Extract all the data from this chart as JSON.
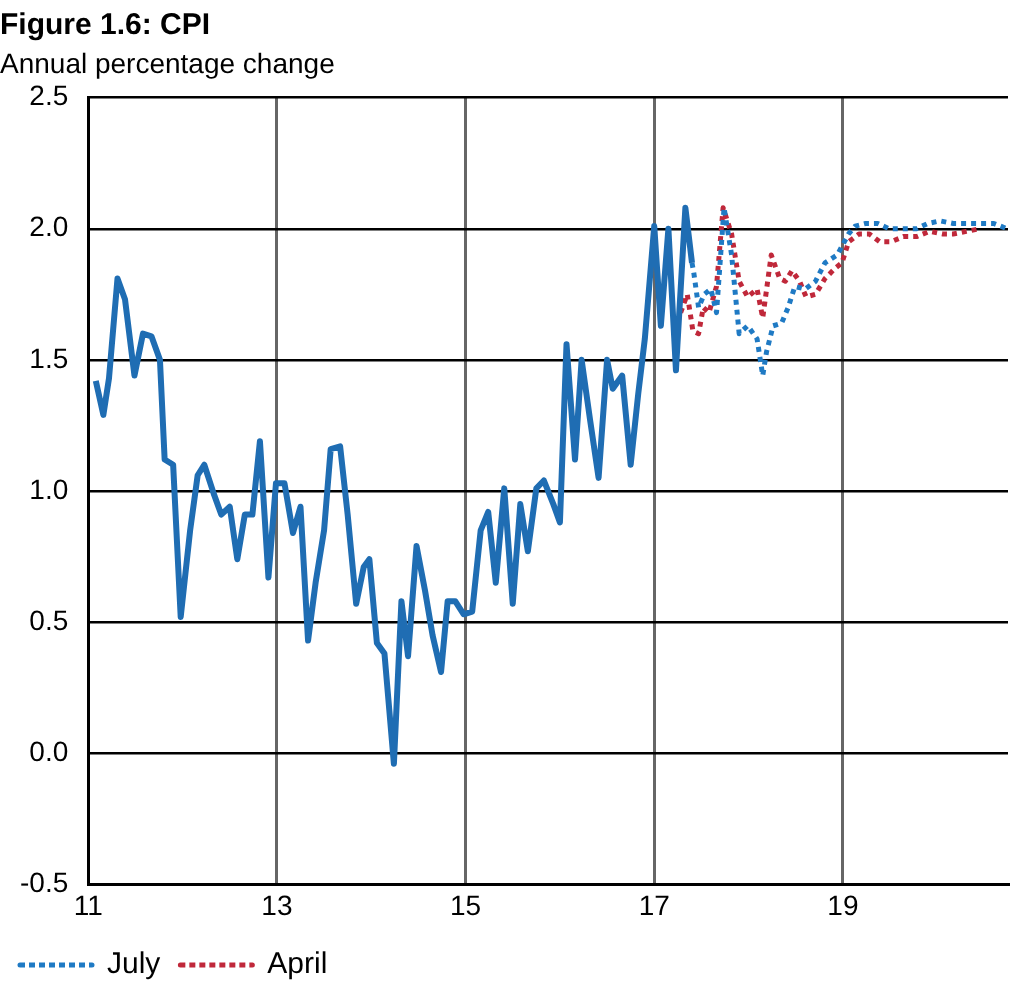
{
  "chart_data": {
    "type": "line",
    "title": "Figure 1.6: CPI",
    "subtitle": "Annual percentage change",
    "xlim": [
      11,
      20.75
    ],
    "xticks": [
      11,
      13,
      15,
      17,
      19
    ],
    "ylim": [
      -0.5,
      2.5
    ],
    "yticks": [
      -0.5,
      {
        "value": 0,
        "label": "0.0"
      },
      0.5,
      {
        "value": 1,
        "label": "1.0"
      },
      1.5,
      {
        "value": 2,
        "label": "2.0"
      },
      2.5
    ],
    "grid": true,
    "legend": "bottom",
    "marker": "none",
    "series": [
      {
        "color": "#1f6db3",
        "line_style": "solid",
        "x": [
          11.08,
          11.16,
          11.22,
          11.31,
          11.39,
          11.49,
          11.58,
          11.67,
          11.76,
          11.81,
          11.9,
          11.98,
          12.08,
          12.16,
          12.23,
          12.33,
          12.41,
          12.5,
          12.58,
          12.66,
          12.74,
          12.82,
          12.91,
          12.99,
          13.08,
          13.17,
          13.25,
          13.33,
          13.41,
          13.5,
          13.57,
          13.67,
          13.75,
          13.84,
          13.92,
          13.98,
          14.06,
          14.14,
          14.24,
          14.32,
          14.39,
          14.48,
          14.57,
          14.65,
          14.74,
          14.81,
          14.89,
          14.98,
          15.07,
          15.16,
          15.24,
          15.32,
          15.41,
          15.5,
          15.58,
          15.66,
          15.75,
          15.83,
          15.93,
          16.0,
          16.07,
          16.16,
          16.23,
          16.32,
          16.41,
          16.5,
          16.56,
          16.66,
          16.75,
          16.83,
          16.9,
          17.0,
          17.07,
          17.15,
          17.23,
          17.33,
          17.4
        ],
        "values": [
          1.42,
          1.29,
          1.43,
          1.81,
          1.73,
          1.44,
          1.6,
          1.59,
          1.5,
          1.12,
          1.1,
          0.52,
          0.85,
          1.06,
          1.1,
          0.99,
          0.91,
          0.94,
          0.74,
          0.91,
          0.91,
          1.19,
          0.67,
          1.03,
          1.03,
          0.84,
          0.94,
          0.43,
          0.65,
          0.85,
          1.16,
          1.17,
          0.91,
          0.57,
          0.71,
          0.74,
          0.42,
          0.38,
          -0.04,
          0.58,
          0.37,
          0.79,
          0.62,
          0.45,
          0.31,
          0.58,
          0.58,
          0.53,
          0.54,
          0.85,
          0.92,
          0.65,
          1.01,
          0.57,
          0.95,
          0.77,
          1.01,
          1.04,
          0.95,
          0.88,
          1.56,
          1.12,
          1.5,
          1.27,
          1.05,
          1.5,
          1.39,
          1.44,
          1.1,
          1.37,
          1.58,
          2.01,
          1.63,
          2.0,
          1.46,
          2.08,
          1.87
        ]
      },
      {
        "name": "July",
        "color": "#1f7ac4",
        "line_style": "dotted",
        "x": [
          17.4,
          17.42,
          17.47,
          17.53,
          17.6,
          17.66,
          17.74,
          17.82,
          17.9,
          17.99,
          18.09,
          18.15,
          18.19,
          18.26,
          18.35,
          18.42,
          18.49,
          18.6,
          18.71,
          18.81,
          18.94,
          19.06,
          19.13,
          19.24,
          19.37,
          19.49,
          19.64,
          19.78,
          19.9,
          20.03,
          20.17,
          20.31,
          20.45,
          20.6,
          20.74
        ],
        "values": [
          1.87,
          1.83,
          1.7,
          1.75,
          1.77,
          1.68,
          2.08,
          1.9,
          1.6,
          1.63,
          1.58,
          1.44,
          1.53,
          1.63,
          1.64,
          1.7,
          1.78,
          1.77,
          1.8,
          1.87,
          1.9,
          1.98,
          2.01,
          2.02,
          2.02,
          2.0,
          2.0,
          2.0,
          2.02,
          2.03,
          2.02,
          2.02,
          2.02,
          2.02,
          2.0
        ]
      },
      {
        "name": "April",
        "color": "#c0283a",
        "line_style": "dotted",
        "x": [
          17.28,
          17.35,
          17.41,
          17.47,
          17.52,
          17.58,
          17.66,
          17.73,
          17.82,
          17.9,
          17.99,
          18.09,
          18.15,
          18.24,
          18.33,
          18.39,
          18.46,
          18.54,
          18.61,
          18.71,
          18.81,
          18.92,
          18.99,
          19.06,
          19.17,
          19.28,
          19.39,
          19.51,
          19.64,
          19.78,
          19.92,
          20.06,
          20.17,
          20.31,
          20.45
        ],
        "values": [
          1.68,
          1.75,
          1.61,
          1.6,
          1.7,
          1.68,
          1.78,
          2.08,
          1.98,
          1.8,
          1.74,
          1.77,
          1.66,
          1.9,
          1.81,
          1.8,
          1.84,
          1.8,
          1.74,
          1.75,
          1.81,
          1.85,
          1.87,
          1.95,
          1.98,
          1.98,
          1.95,
          1.95,
          1.97,
          1.97,
          1.99,
          1.98,
          1.98,
          1.99,
          2.0
        ]
      }
    ]
  }
}
